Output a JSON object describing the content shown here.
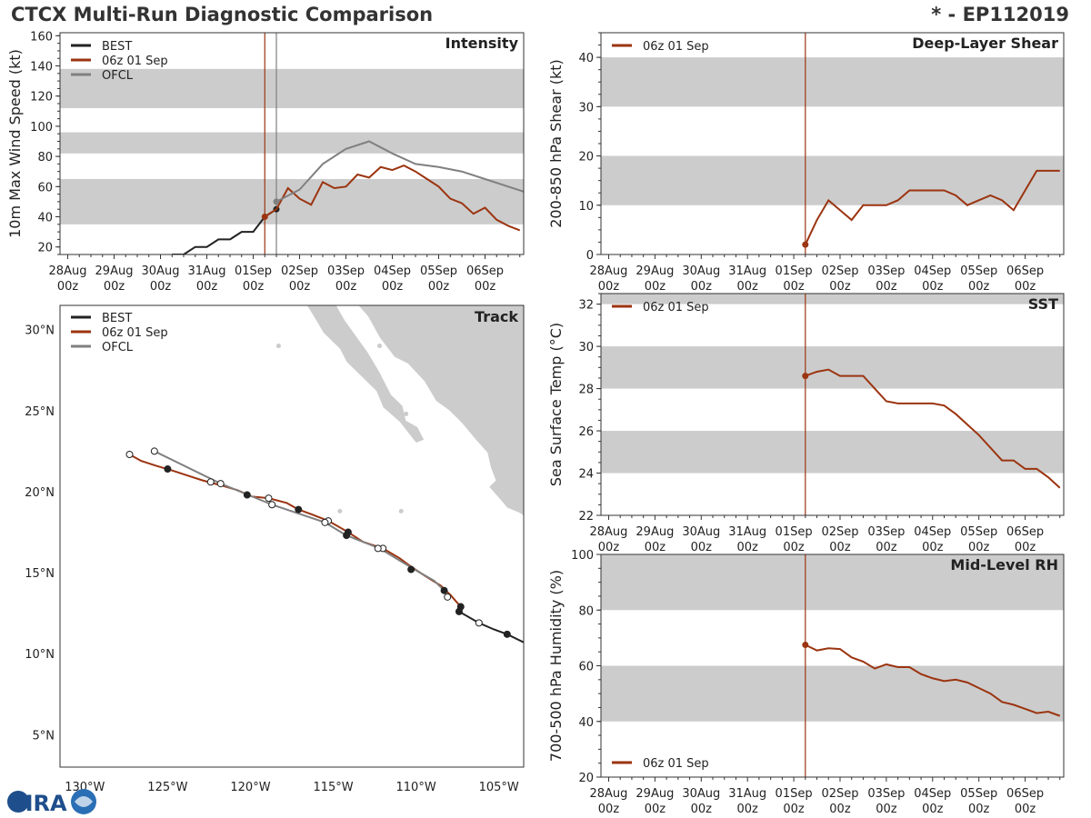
{
  "header": {
    "title": "CTCX Multi-Run Diagnostic Comparison",
    "storm_id": "* - EP112019"
  },
  "logo": {
    "text": "CIRA"
  },
  "colors": {
    "best": "#222222",
    "run": "#9b3410",
    "ofcl": "#808080",
    "band": "#cccccc",
    "land": "#cccccc"
  },
  "time_axis": {
    "ticks": [
      {
        "d": "28Aug",
        "h": "00z"
      },
      {
        "d": "29Aug",
        "h": "00z"
      },
      {
        "d": "30Aug",
        "h": "00z"
      },
      {
        "d": "31Aug",
        "h": "00z"
      },
      {
        "d": "01Sep",
        "h": "00z"
      },
      {
        "d": "02Sep",
        "h": "00z"
      },
      {
        "d": "03Sep",
        "h": "00z"
      },
      {
        "d": "04Sep",
        "h": "00z"
      },
      {
        "d": "05Sep",
        "h": "00z"
      },
      {
        "d": "06Sep",
        "h": "00z"
      }
    ],
    "range_hours": [
      -4,
      236
    ],
    "note": "hours since 28Aug 00z"
  },
  "chart_data": [
    {
      "id": "intensity",
      "type": "line",
      "title": "Intensity",
      "ylabel": "10m Max Wind Speed (kt)",
      "ylim": [
        15,
        162
      ],
      "yticks": [
        20,
        40,
        60,
        80,
        100,
        120,
        140,
        160
      ],
      "bands": [
        [
          35,
          65
        ],
        [
          82,
          96
        ],
        [
          112,
          138
        ]
      ],
      "vlines": [
        {
          "t": 102,
          "series": "run"
        },
        {
          "t": 108,
          "series": "ofcl"
        }
      ],
      "legend": [
        "BEST",
        "06z 01 Sep",
        "OFCL"
      ],
      "series": [
        {
          "name": "BEST",
          "key": "best",
          "t": [
            54,
            60,
            66,
            72,
            78,
            84,
            90,
            96,
            102,
            108
          ],
          "v": [
            15,
            15,
            20,
            20,
            25,
            25,
            30,
            30,
            40,
            45
          ],
          "markers": [
            108
          ]
        },
        {
          "name": "06z 01 Sep",
          "key": "run",
          "t": [
            102,
            108,
            114,
            120,
            126,
            132,
            138,
            144,
            150,
            156,
            162,
            168,
            174,
            180,
            186,
            192,
            198,
            204,
            210,
            216,
            222,
            228,
            234
          ],
          "v": [
            40,
            45,
            59,
            52,
            48,
            63,
            59,
            60,
            68,
            66,
            73,
            71,
            74,
            70,
            65,
            60,
            52,
            49,
            42,
            46,
            38,
            34,
            31
          ],
          "markers": [
            102
          ]
        },
        {
          "name": "OFCL",
          "key": "ofcl",
          "t": [
            108,
            120,
            132,
            144,
            156,
            168,
            180,
            192,
            204,
            216,
            228,
            240
          ],
          "v": [
            50,
            58,
            75,
            85,
            90,
            82,
            75,
            73,
            70,
            65,
            60,
            55
          ],
          "markers": [
            108
          ]
        }
      ]
    },
    {
      "id": "shear",
      "type": "line",
      "title": "Deep-Layer Shear",
      "ylabel": "200-850 hPa Shear (kt)",
      "ylim": [
        0,
        45
      ],
      "yticks": [
        0,
        10,
        20,
        30,
        40
      ],
      "bands": [
        [
          10,
          20
        ],
        [
          30,
          40
        ]
      ],
      "vlines": [
        {
          "t": 102,
          "series": "run"
        }
      ],
      "legend": [
        "06z 01 Sep"
      ],
      "series": [
        {
          "name": "06z 01 Sep",
          "key": "run",
          "t": [
            102,
            108,
            114,
            120,
            126,
            132,
            138,
            144,
            150,
            156,
            162,
            168,
            174,
            180,
            186,
            192,
            198,
            204,
            210,
            216,
            222,
            228,
            234
          ],
          "v": [
            2,
            7,
            11,
            9,
            7,
            10,
            10,
            10,
            11,
            13,
            13,
            13,
            13,
            12,
            10,
            11,
            12,
            11,
            9,
            13,
            17,
            17,
            17
          ],
          "markers": [
            102
          ]
        }
      ]
    },
    {
      "id": "sst",
      "type": "line",
      "title": "SST",
      "ylabel": "Sea Surface Temp (°C)",
      "ylim": [
        22,
        32.5
      ],
      "yticks": [
        22,
        24,
        26,
        28,
        30,
        32
      ],
      "bands": [
        [
          24,
          26
        ],
        [
          28,
          30
        ],
        [
          32,
          33
        ]
      ],
      "vlines": [
        {
          "t": 102,
          "series": "run"
        }
      ],
      "legend": [
        "06z 01 Sep"
      ],
      "series": [
        {
          "name": "06z 01 Sep",
          "key": "run",
          "t": [
            102,
            108,
            114,
            120,
            126,
            132,
            138,
            144,
            150,
            156,
            162,
            168,
            174,
            180,
            186,
            192,
            198,
            204,
            210,
            216,
            222,
            228,
            234
          ],
          "v": [
            28.6,
            28.8,
            28.9,
            28.6,
            28.6,
            28.6,
            28.0,
            27.4,
            27.3,
            27.3,
            27.3,
            27.3,
            27.2,
            26.8,
            26.3,
            25.8,
            25.2,
            24.6,
            24.6,
            24.2,
            24.2,
            23.8,
            23.3
          ],
          "markers": [
            102
          ]
        }
      ]
    },
    {
      "id": "rh",
      "type": "line",
      "title": "Mid-Level RH",
      "ylabel": "700-500 hPa Humidity (%)",
      "ylim": [
        20,
        100
      ],
      "yticks": [
        20,
        40,
        60,
        80,
        100
      ],
      "bands": [
        [
          40,
          60
        ],
        [
          80,
          100
        ]
      ],
      "vlines": [
        {
          "t": 102,
          "series": "run"
        }
      ],
      "legend": [
        "06z 01 Sep"
      ],
      "legend_pos": "bottom-left",
      "series": [
        {
          "name": "06z 01 Sep",
          "key": "run",
          "t": [
            102,
            108,
            114,
            120,
            126,
            132,
            138,
            144,
            150,
            156,
            162,
            168,
            174,
            180,
            186,
            192,
            198,
            204,
            210,
            216,
            222,
            228,
            234
          ],
          "v": [
            67.5,
            65.5,
            66.3,
            66,
            63,
            61.5,
            59,
            60.5,
            59.5,
            59.5,
            57,
            55.5,
            54.5,
            55,
            54,
            52,
            50,
            47,
            46,
            44.5,
            43,
            43.5,
            42
          ],
          "markers": [
            102
          ]
        }
      ]
    },
    {
      "id": "track",
      "type": "scatter",
      "title": "Track",
      "xlim": [
        -131.5,
        -103.5
      ],
      "ylim": [
        3,
        31.5
      ],
      "xticks": [
        {
          "v": -130,
          "label": "130°W"
        },
        {
          "v": -125,
          "label": "125°W"
        },
        {
          "v": -120,
          "label": "120°W"
        },
        {
          "v": -115,
          "label": "115°W"
        },
        {
          "v": -110,
          "label": "110°W"
        },
        {
          "v": -105,
          "label": "105°W"
        }
      ],
      "yticks": [
        {
          "v": 5,
          "label": "5°N"
        },
        {
          "v": 10,
          "label": "10°N"
        },
        {
          "v": 15,
          "label": "15°N"
        },
        {
          "v": 20,
          "label": "20°N"
        },
        {
          "v": 25,
          "label": "25°N"
        },
        {
          "v": 30,
          "label": "30°N"
        }
      ],
      "legend": [
        "BEST",
        "06z 01 Sep",
        "OFCL"
      ],
      "series": [
        {
          "name": "BEST",
          "key": "best",
          "lon": [
            -103.5,
            -104.5,
            -105.3,
            -106.2,
            -107.4,
            -107.5
          ],
          "lat": [
            10.7,
            11.2,
            11.5,
            11.9,
            12.6,
            12.8
          ],
          "pts": [
            {
              "lon": -104.5,
              "lat": 11.2,
              "fill": "solid"
            },
            {
              "lon": -106.2,
              "lat": 11.9,
              "fill": "open"
            },
            {
              "lon": -107.4,
              "lat": 12.6,
              "fill": "solid"
            }
          ]
        },
        {
          "name": "06z 01 Sep",
          "key": "run",
          "lon": [
            -107.3,
            -107.9,
            -108.5,
            -109.3,
            -110.2,
            -111.0,
            -112.0,
            -113.2,
            -114.1,
            -115.3,
            -116.3,
            -117.1,
            -117.8,
            -118.9,
            -119.9,
            -120.8,
            -121.8,
            -122.9,
            -123.8,
            -124.7,
            -125.7,
            -126.6,
            -127.3
          ],
          "lat": [
            12.9,
            13.6,
            14.2,
            14.7,
            15.3,
            15.9,
            16.5,
            16.9,
            17.5,
            18.2,
            18.6,
            18.9,
            19.3,
            19.6,
            19.7,
            20.1,
            20.4,
            20.7,
            21.0,
            21.3,
            21.6,
            21.9,
            22.3
          ],
          "pts": [
            {
              "lon": -107.3,
              "lat": 12.9,
              "fill": "solid"
            },
            {
              "lon": -112.0,
              "lat": 16.5,
              "fill": "open"
            },
            {
              "lon": -114.1,
              "lat": 17.5,
              "fill": "solid"
            },
            {
              "lon": -115.3,
              "lat": 18.2,
              "fill": "open"
            },
            {
              "lon": -117.1,
              "lat": 18.9,
              "fill": "solid"
            },
            {
              "lon": -118.9,
              "lat": 19.6,
              "fill": "open"
            },
            {
              "lon": -120.2,
              "lat": 19.8,
              "fill": "solid"
            },
            {
              "lon": -122.4,
              "lat": 20.6,
              "fill": "open"
            },
            {
              "lon": -125.0,
              "lat": 21.4,
              "fill": "solid"
            },
            {
              "lon": -127.3,
              "lat": 22.3,
              "fill": "open"
            }
          ]
        },
        {
          "name": "OFCL",
          "key": "ofcl",
          "lon": [
            -108.3,
            -108.9,
            -110.1,
            -112.2,
            -114.2,
            -115.5,
            -118.7,
            -121.8,
            -125.8
          ],
          "lat": [
            13.9,
            14.5,
            15.2,
            16.5,
            17.3,
            18.1,
            19.2,
            20.5,
            22.5
          ],
          "pts": [
            {
              "lon": -108.3,
              "lat": 13.9,
              "fill": "solid"
            },
            {
              "lon": -108.1,
              "lat": 13.5,
              "fill": "open"
            },
            {
              "lon": -110.3,
              "lat": 15.2,
              "fill": "solid"
            },
            {
              "lon": -112.3,
              "lat": 16.5,
              "fill": "open"
            },
            {
              "lon": -114.2,
              "lat": 17.3,
              "fill": "solid"
            },
            {
              "lon": -115.5,
              "lat": 18.1,
              "fill": "open"
            },
            {
              "lon": -118.7,
              "lat": 19.2,
              "fill": "open"
            },
            {
              "lon": -121.8,
              "lat": 20.5,
              "fill": "open"
            },
            {
              "lon": -125.8,
              "lat": 22.5,
              "fill": "open"
            }
          ]
        }
      ]
    }
  ]
}
